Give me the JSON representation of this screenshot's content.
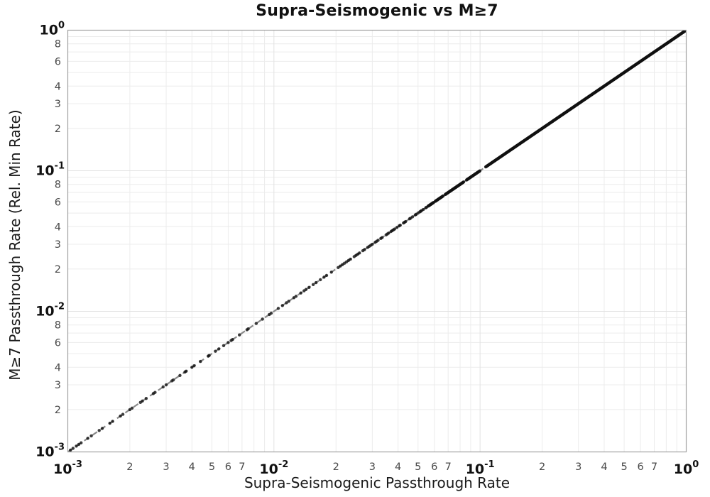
{
  "chart_data": {
    "type": "scatter",
    "title": "Supra-Seismogenic vs M≥7",
    "xlabel": "Supra-Seismogenic Passthrough Rate",
    "ylabel": "M≥7 Passthrough Rate (Rel. Min Rate)",
    "xscale": "log",
    "yscale": "log",
    "xlim": [
      0.001,
      1
    ],
    "ylim": [
      0.001,
      1
    ],
    "relation": "y = x (all points lie on the 1:1 identity line)",
    "reference_line": {
      "style": "dashed",
      "color": "#898989",
      "width": 2.2,
      "dash": "8 6",
      "from": [
        0.001,
        0.001
      ],
      "to": [
        1,
        1
      ]
    },
    "marker": {
      "color": "#111111",
      "radius": 2.2,
      "opacity": 0.82
    },
    "grid": {
      "on": true,
      "minor_color": "#ececec",
      "major_color": "#e2e2e2",
      "border_color": "#a0a0a0"
    },
    "axis": {
      "x_major": [
        {
          "base": "10",
          "exp": "-3",
          "value": 0.001
        },
        {
          "base": "10",
          "exp": "-2",
          "value": 0.01
        },
        {
          "base": "10",
          "exp": "-1",
          "value": 0.1
        },
        {
          "base": "10",
          "exp": "0",
          "value": 1
        }
      ],
      "y_major": [
        {
          "base": "10",
          "exp": "-3",
          "value": 0.001
        },
        {
          "base": "10",
          "exp": "-2",
          "value": 0.01
        },
        {
          "base": "10",
          "exp": "-1",
          "value": 0.1
        },
        {
          "base": "10",
          "exp": "0",
          "value": 1
        }
      ],
      "x_minor_labeled": [
        2,
        3,
        4,
        5,
        6,
        7
      ],
      "y_minor_labeled": [
        2,
        3,
        4,
        6,
        8
      ],
      "minor_gridline_multiples": [
        2,
        3,
        4,
        5,
        6,
        7,
        8,
        9
      ],
      "decade_exponents": [
        -3,
        -2,
        -1
      ]
    },
    "sparse_points_x": [
      0.00103,
      0.00106,
      0.0011,
      0.00113,
      0.00116,
      0.00125,
      0.0013,
      0.00142,
      0.00147,
      0.0016,
      0.00165,
      0.0018,
      0.00185,
      0.002,
      0.00205,
      0.00225,
      0.0023,
      0.0024,
      0.0026,
      0.00265,
      0.0029,
      0.003,
      0.0032,
      0.00325,
      0.0035,
      0.0037,
      0.00375,
      0.004,
      0.0041,
      0.0044,
      0.0048,
      0.00485,
      0.0052,
      0.0054,
      0.0057,
      0.006,
      0.0062,
      0.0063,
      0.0068,
      0.0074,
      0.0075,
      0.0082,
      0.0088,
      0.0095,
      0.0097,
      0.0105,
      0.011,
      0.0115,
      0.0118,
      0.0125,
      0.0128,
      0.0135,
      0.014,
      0.0143,
      0.0148,
      0.0155,
      0.016,
      0.0168,
      0.0175,
      0.018,
      0.019,
      0.0205,
      0.021,
      0.0215,
      0.022,
      0.0225,
      0.023,
      0.0235,
      0.0245,
      0.025,
      0.0255,
      0.026,
      0.027,
      0.0275,
      0.0285,
      0.029,
      0.0295,
      0.03,
      0.031,
      0.0315,
      0.032,
      0.033,
      0.0335,
      0.035,
      0.0355,
      0.036,
      0.037,
      0.0375,
      0.038,
      0.0385,
      0.0395,
      0.0405,
      0.041,
      0.0425,
      0.043,
      0.0435,
      0.0455,
      0.046,
      0.047,
      0.0485,
      0.049,
      0.05,
      0.051,
      0.0515,
      0.052,
      0.053,
      0.0545,
      0.055
    ],
    "dense_band": {
      "from": 0.056,
      "to": 1.0,
      "count": 620,
      "gaps": [
        [
          0.0595,
          0.0605
        ],
        [
          0.0665,
          0.0675
        ],
        [
          0.0832,
          0.0858
        ],
        [
          0.1,
          0.106
        ]
      ]
    }
  }
}
